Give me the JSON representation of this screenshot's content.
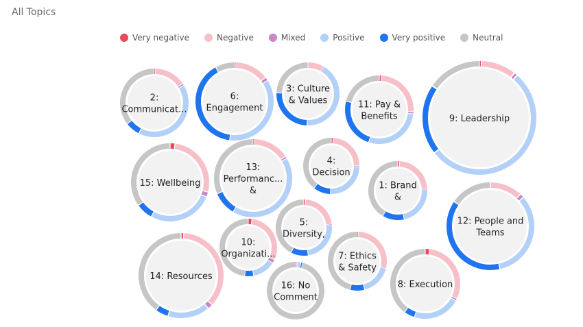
{
  "title": "All Topics",
  "chart_data": {
    "type": "donut-bubble",
    "title": "All Topics",
    "legend_position": "top",
    "sentiments": [
      {
        "name": "Very negative",
        "color": "#e8495a"
      },
      {
        "name": "Negative",
        "color": "#f7bfc7"
      },
      {
        "name": "Mixed",
        "color": "#c888c8"
      },
      {
        "name": "Positive",
        "color": "#b3d1f8"
      },
      {
        "name": "Very positive",
        "color": "#1f75ef"
      },
      {
        "name": "Neutral",
        "color": "#c6c6c6"
      }
    ],
    "topics": [
      {
        "label": [
          "2:",
          "Communicat..."
        ],
        "shares": [
          0.005,
          0.15,
          0.01,
          0.41,
          0.07,
          0.355
        ]
      },
      {
        "label": [
          "6:",
          "Engagement"
        ],
        "shares": [
          0.005,
          0.14,
          0.015,
          0.36,
          0.4,
          0.08
        ]
      },
      {
        "label": [
          "3: Culture",
          "& Values"
        ],
        "shares": [
          0,
          0.08,
          0.005,
          0.42,
          0.25,
          0.245
        ]
      },
      {
        "label": [
          "11: Pay &",
          "Benefits"
        ],
        "shares": [
          0.01,
          0.25,
          0.01,
          0.28,
          0.24,
          0.21
        ]
      },
      {
        "label": [
          "9: Leadership"
        ],
        "shares": [
          0.005,
          0.1,
          0.01,
          0.53,
          0.2,
          0.155
        ]
      },
      {
        "label": [
          "15: Wellbeing"
        ],
        "shares": [
          0.02,
          0.27,
          0.02,
          0.27,
          0.07,
          0.35
        ]
      },
      {
        "label": [
          "13:",
          "Performanc...",
          "&"
        ],
        "shares": [
          0.005,
          0.15,
          0.01,
          0.42,
          0.1,
          0.315
        ]
      },
      {
        "label": [
          "4:",
          "Decision"
        ],
        "shares": [
          0.01,
          0.24,
          0.005,
          0.25,
          0.1,
          0.395
        ]
      },
      {
        "label": [
          "1: Brand",
          "&"
        ],
        "shares": [
          0.01,
          0.23,
          0.005,
          0.22,
          0.12,
          0.415
        ]
      },
      {
        "label": [
          "12: People and",
          "Teams"
        ],
        "shares": [
          0,
          0.12,
          0.015,
          0.33,
          0.38,
          0.155
        ]
      },
      {
        "label": [
          "5:",
          "Diversity,"
        ],
        "shares": [
          0.01,
          0.22,
          0.005,
          0.24,
          0.1,
          0.425
        ]
      },
      {
        "label": [
          "10:",
          "Organizati..."
        ],
        "shares": [
          0.02,
          0.3,
          0.02,
          0.13,
          0.05,
          0.48
        ]
      },
      {
        "label": [
          "7: Ethics",
          "& Safety"
        ],
        "shares": [
          0.005,
          0.28,
          0.005,
          0.17,
          0.08,
          0.46
        ]
      },
      {
        "label": [
          "14: Resources"
        ],
        "shares": [
          0.01,
          0.36,
          0.02,
          0.16,
          0.05,
          0.4
        ]
      },
      {
        "label": [
          "16: No",
          "Comment"
        ],
        "shares": [
          0.005,
          0.005,
          0,
          0.02,
          0.01,
          0.96
        ]
      },
      {
        "label": [
          "8: Execution"
        ],
        "shares": [
          0.02,
          0.3,
          0.01,
          0.22,
          0.05,
          0.4
        ]
      }
    ]
  }
}
